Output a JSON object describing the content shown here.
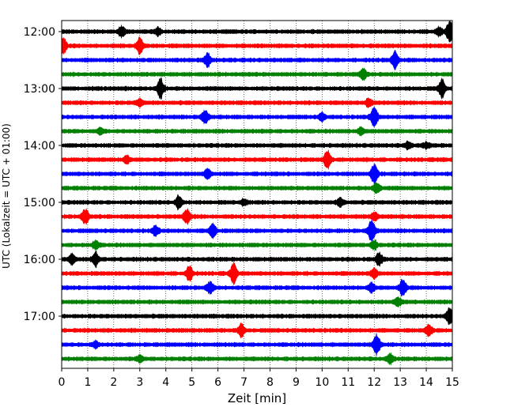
{
  "chart_data": {
    "type": "line",
    "title": "",
    "xlabel": "Zeit  [min]",
    "ylabel": "UTC (Lokalzeit = UTC + 01:00)",
    "xlim": [
      0,
      15
    ],
    "x_ticks": [
      0,
      1,
      2,
      3,
      4,
      5,
      6,
      7,
      8,
      9,
      10,
      11,
      12,
      13,
      14,
      15
    ],
    "y_tick_labels": [
      "12:00",
      "13:00",
      "14:00",
      "15:00",
      "16:00",
      "17:00"
    ],
    "rows_per_hour": 4,
    "row_minutes": 15,
    "grid_x": true,
    "colors": [
      "#000000",
      "#ff0000",
      "#0000ff",
      "#008000"
    ],
    "series": [
      {
        "name": "12:00",
        "events": [
          [
            2.3,
            1.1
          ],
          [
            3.7,
            0.8
          ],
          [
            14.9,
            2.4
          ],
          [
            14.5,
            1.0
          ]
        ]
      },
      {
        "name": "12:15",
        "events": [
          [
            0.05,
            2.0
          ],
          [
            3.0,
            1.8
          ]
        ]
      },
      {
        "name": "12:30",
        "events": [
          [
            5.6,
            1.5
          ],
          [
            12.8,
            1.9
          ]
        ]
      },
      {
        "name": "12:45",
        "events": [
          [
            11.6,
            1.3
          ]
        ]
      },
      {
        "name": "13:00",
        "events": [
          [
            3.8,
            2.2
          ],
          [
            14.6,
            2.1
          ]
        ]
      },
      {
        "name": "13:15",
        "events": [
          [
            3.0,
            0.8
          ],
          [
            11.8,
            0.9
          ]
        ]
      },
      {
        "name": "13:30",
        "events": [
          [
            5.5,
            1.4
          ],
          [
            12.0,
            2.5
          ],
          [
            10.0,
            0.8
          ]
        ]
      },
      {
        "name": "13:45",
        "events": [
          [
            1.5,
            0.7
          ],
          [
            11.5,
            0.7
          ]
        ]
      },
      {
        "name": "14:00",
        "events": [
          [
            13.3,
            0.8
          ],
          [
            14.0,
            0.6
          ]
        ]
      },
      {
        "name": "14:15",
        "events": [
          [
            10.2,
            2.1
          ],
          [
            2.5,
            0.8
          ]
        ]
      },
      {
        "name": "14:30",
        "events": [
          [
            5.6,
            1.2
          ],
          [
            12.0,
            2.4
          ]
        ]
      },
      {
        "name": "14:45",
        "events": [
          [
            12.1,
            1.2
          ]
        ]
      },
      {
        "name": "15:00",
        "events": [
          [
            4.5,
            1.6
          ],
          [
            10.7,
            0.9
          ],
          [
            7.0,
            0.6
          ]
        ]
      },
      {
        "name": "15:15",
        "events": [
          [
            0.9,
            1.9
          ],
          [
            4.8,
            1.6
          ],
          [
            12.0,
            0.9
          ]
        ]
      },
      {
        "name": "15:30",
        "events": [
          [
            3.6,
            1.0
          ],
          [
            5.8,
            1.5
          ],
          [
            11.9,
            2.6
          ]
        ]
      },
      {
        "name": "15:45",
        "events": [
          [
            1.3,
            0.9
          ],
          [
            12.0,
            1.0
          ]
        ]
      },
      {
        "name": "16:00",
        "events": [
          [
            1.3,
            1.6
          ],
          [
            12.2,
            1.4
          ],
          [
            0.4,
            1.0
          ]
        ]
      },
      {
        "name": "16:15",
        "events": [
          [
            4.9,
            1.6
          ],
          [
            6.6,
            2.2
          ],
          [
            12.0,
            1.0
          ]
        ]
      },
      {
        "name": "16:30",
        "events": [
          [
            5.7,
            1.3
          ],
          [
            13.1,
            2.1
          ],
          [
            11.9,
            0.9
          ]
        ]
      },
      {
        "name": "16:45",
        "events": [
          [
            12.9,
            1.1
          ]
        ]
      },
      {
        "name": "17:00",
        "events": [
          [
            14.9,
            2.0
          ]
        ]
      },
      {
        "name": "17:15",
        "events": [
          [
            6.9,
            1.4
          ],
          [
            14.1,
            1.2
          ]
        ]
      },
      {
        "name": "17:30",
        "events": [
          [
            12.1,
            2.5
          ],
          [
            1.3,
            0.7
          ]
        ]
      },
      {
        "name": "17:45",
        "events": [
          [
            12.6,
            1.0
          ],
          [
            3.0,
            0.6
          ]
        ]
      }
    ]
  }
}
